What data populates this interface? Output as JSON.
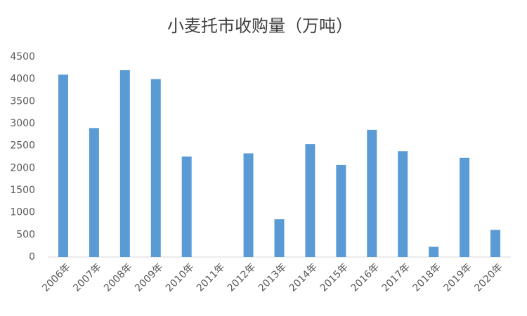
{
  "chart_data": {
    "type": "bar",
    "title": "小麦托市收购量（万吨）",
    "categories": [
      "2006年",
      "2007年",
      "2008年",
      "2009年",
      "2010年",
      "2011年",
      "2012年",
      "2013年",
      "2014年",
      "2015年",
      "2016年",
      "2017年",
      "2018年",
      "2019年",
      "2020年"
    ],
    "values": [
      4100,
      2900,
      4200,
      4000,
      2260,
      0,
      2330,
      850,
      2540,
      2070,
      2860,
      2380,
      230,
      2230,
      610
    ],
    "color": "#5b9bd5",
    "ylim": [
      0,
      4500
    ],
    "yticks": [
      0,
      500,
      1000,
      1500,
      2000,
      2500,
      3000,
      3500,
      4000,
      4500
    ],
    "grid": false
  }
}
